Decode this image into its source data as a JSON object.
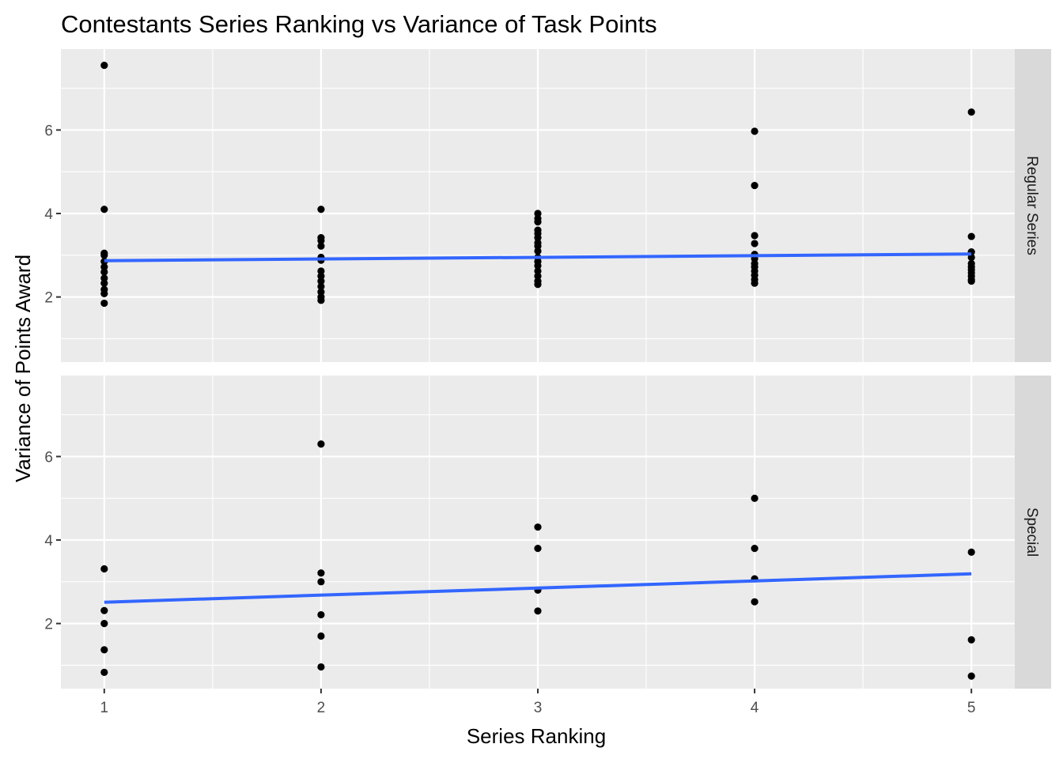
{
  "chart_data": {
    "type": "scatter",
    "title": "Contestants Series Ranking vs Variance of Task Points",
    "xlabel": "Series Ranking",
    "ylabel": "Variance of Points Award",
    "xlim": [
      0.8,
      5.2
    ],
    "ylim": [
      0.44,
      7.94
    ],
    "x_ticks": [
      1,
      2,
      3,
      4,
      5
    ],
    "y_ticks": [
      2,
      4,
      6
    ],
    "grid": true,
    "colors": {
      "panel_background": "#ebebeb",
      "strip_background": "#d9d9d9",
      "grid": "#ffffff",
      "points": "#000000",
      "trend_line": "#3366ff"
    },
    "facets": [
      {
        "label": "Regular Series",
        "trend": {
          "x": [
            1,
            5
          ],
          "y": [
            2.87,
            3.03
          ]
        },
        "points": [
          {
            "x": 1,
            "y": 7.55
          },
          {
            "x": 1,
            "y": 4.1
          },
          {
            "x": 1,
            "y": 3.05
          },
          {
            "x": 1,
            "y": 3.0
          },
          {
            "x": 1,
            "y": 2.85
          },
          {
            "x": 1,
            "y": 2.72
          },
          {
            "x": 1,
            "y": 2.6
          },
          {
            "x": 1,
            "y": 2.45
          },
          {
            "x": 1,
            "y": 2.33
          },
          {
            "x": 1,
            "y": 2.18
          },
          {
            "x": 1,
            "y": 2.08
          },
          {
            "x": 1,
            "y": 1.85
          },
          {
            "x": 2,
            "y": 4.1
          },
          {
            "x": 2,
            "y": 3.42
          },
          {
            "x": 2,
            "y": 3.35
          },
          {
            "x": 2,
            "y": 3.22
          },
          {
            "x": 2,
            "y": 2.95
          },
          {
            "x": 2,
            "y": 2.88
          },
          {
            "x": 2,
            "y": 2.62
          },
          {
            "x": 2,
            "y": 2.5
          },
          {
            "x": 2,
            "y": 2.38
          },
          {
            "x": 2,
            "y": 2.25
          },
          {
            "x": 2,
            "y": 2.12
          },
          {
            "x": 2,
            "y": 2.0
          },
          {
            "x": 2,
            "y": 1.92
          },
          {
            "x": 3,
            "y": 4.0
          },
          {
            "x": 3,
            "y": 3.88
          },
          {
            "x": 3,
            "y": 3.8
          },
          {
            "x": 3,
            "y": 3.6
          },
          {
            "x": 3,
            "y": 3.52
          },
          {
            "x": 3,
            "y": 3.42
          },
          {
            "x": 3,
            "y": 3.3
          },
          {
            "x": 3,
            "y": 3.22
          },
          {
            "x": 3,
            "y": 3.1
          },
          {
            "x": 3,
            "y": 2.95
          },
          {
            "x": 3,
            "y": 2.85
          },
          {
            "x": 3,
            "y": 2.75
          },
          {
            "x": 3,
            "y": 2.62
          },
          {
            "x": 3,
            "y": 2.5
          },
          {
            "x": 3,
            "y": 2.38
          },
          {
            "x": 3,
            "y": 2.3
          },
          {
            "x": 4,
            "y": 5.97
          },
          {
            "x": 4,
            "y": 4.67
          },
          {
            "x": 4,
            "y": 3.47
          },
          {
            "x": 4,
            "y": 3.28
          },
          {
            "x": 4,
            "y": 3.02
          },
          {
            "x": 4,
            "y": 2.92
          },
          {
            "x": 4,
            "y": 2.8
          },
          {
            "x": 4,
            "y": 2.72
          },
          {
            "x": 4,
            "y": 2.62
          },
          {
            "x": 4,
            "y": 2.52
          },
          {
            "x": 4,
            "y": 2.42
          },
          {
            "x": 4,
            "y": 2.33
          },
          {
            "x": 5,
            "y": 6.43
          },
          {
            "x": 5,
            "y": 3.45
          },
          {
            "x": 5,
            "y": 3.08
          },
          {
            "x": 5,
            "y": 2.95
          },
          {
            "x": 5,
            "y": 2.8
          },
          {
            "x": 5,
            "y": 2.72
          },
          {
            "x": 5,
            "y": 2.65
          },
          {
            "x": 5,
            "y": 2.58
          },
          {
            "x": 5,
            "y": 2.5
          },
          {
            "x": 5,
            "y": 2.42
          },
          {
            "x": 5,
            "y": 2.38
          }
        ]
      },
      {
        "label": "Special",
        "trend": {
          "x": [
            1,
            5
          ],
          "y": [
            2.51,
            3.19
          ]
        },
        "points": [
          {
            "x": 1,
            "y": 3.31
          },
          {
            "x": 1,
            "y": 2.31
          },
          {
            "x": 1,
            "y": 2.0
          },
          {
            "x": 1,
            "y": 1.37
          },
          {
            "x": 1,
            "y": 0.83
          },
          {
            "x": 2,
            "y": 6.3
          },
          {
            "x": 2,
            "y": 3.21
          },
          {
            "x": 2,
            "y": 3.0
          },
          {
            "x": 2,
            "y": 2.21
          },
          {
            "x": 2,
            "y": 1.7
          },
          {
            "x": 2,
            "y": 0.96
          },
          {
            "x": 3,
            "y": 4.31
          },
          {
            "x": 3,
            "y": 3.8
          },
          {
            "x": 3,
            "y": 2.8
          },
          {
            "x": 3,
            "y": 2.3
          },
          {
            "x": 4,
            "y": 5.0
          },
          {
            "x": 4,
            "y": 3.8
          },
          {
            "x": 4,
            "y": 3.07
          },
          {
            "x": 4,
            "y": 2.52
          },
          {
            "x": 5,
            "y": 3.71
          },
          {
            "x": 5,
            "y": 1.61
          },
          {
            "x": 5,
            "y": 0.74
          }
        ]
      }
    ]
  }
}
